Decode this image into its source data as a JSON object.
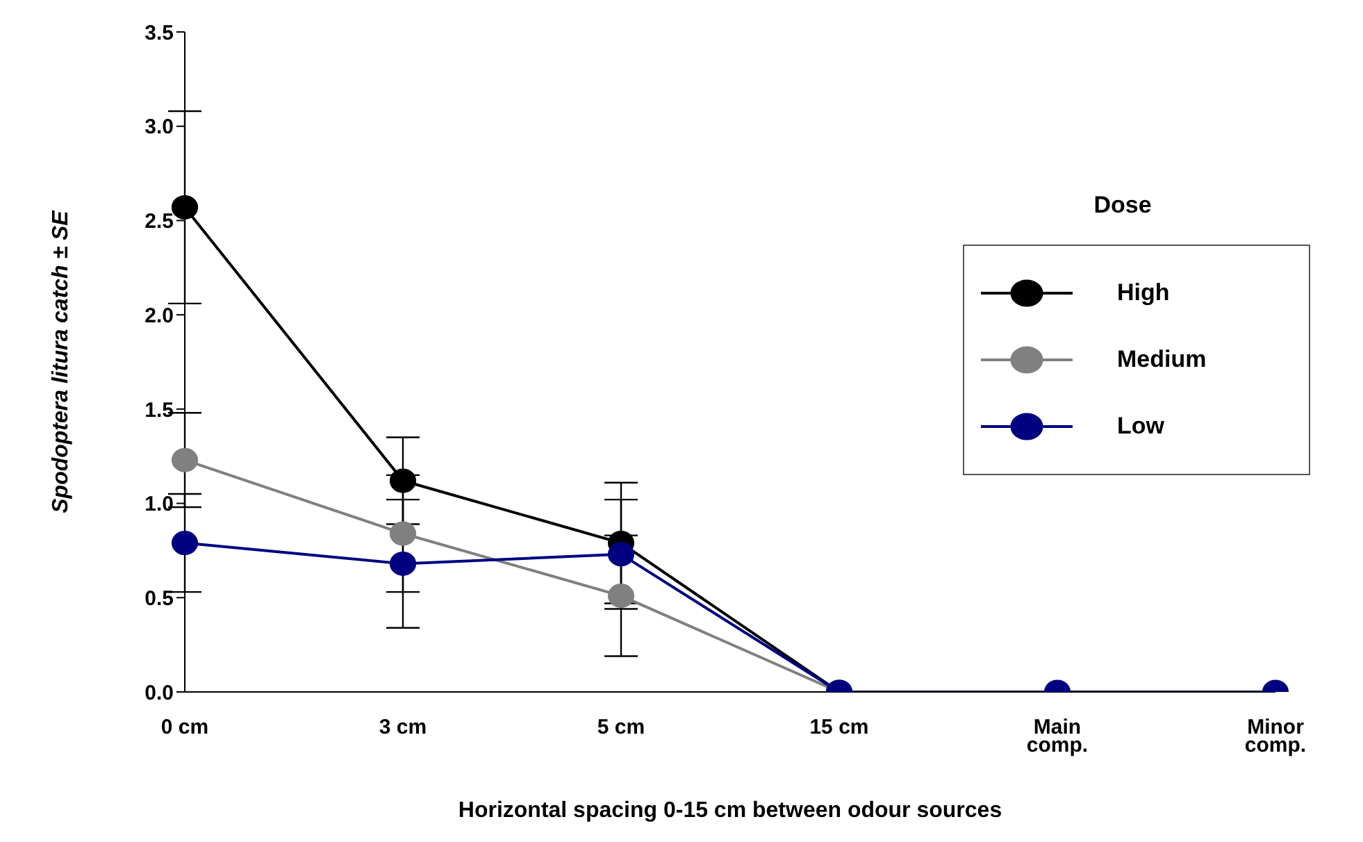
{
  "chart_data": {
    "type": "line",
    "xlabel": "Horizontal  spacing 0-15 cm between odour sources",
    "ylabel": "Spodoptera litura catch ± SE",
    "legend_title": "Dose",
    "legend": "right",
    "marker": "circle",
    "grid": false,
    "categories": [
      "0 cm",
      "3 cm",
      "5 cm",
      "15 cm",
      "Main comp.",
      "Minor comp."
    ],
    "ylim": [
      0,
      3.5
    ],
    "yticks": [
      {
        "value": 0,
        "label": "0.0"
      },
      {
        "value": 0.5,
        "label": "0.5"
      },
      {
        "value": 1,
        "label": "1.0"
      },
      {
        "value": 1.5,
        "label": "1.5"
      },
      {
        "value": 2,
        "label": "2.0"
      },
      {
        "value": 2.5,
        "label": "2.5"
      },
      {
        "value": 3,
        "label": "3.0"
      },
      {
        "value": 3.5,
        "label": "3.5"
      }
    ],
    "series": [
      {
        "name": "High",
        "color": "#000000",
        "values": [
          2.57,
          1.12,
          0.79,
          0,
          null,
          null
        ],
        "errors": [
          0.51,
          0.23,
          0.32,
          null,
          null,
          null
        ]
      },
      {
        "name": "Medium",
        "color": "#808080",
        "values": [
          1.23,
          0.84,
          0.51,
          0,
          null,
          null
        ],
        "errors": [
          0.25,
          0.31,
          0.32,
          null,
          null,
          null
        ]
      },
      {
        "name": "Low",
        "color": "#000080",
        "values": [
          0.79,
          0.68,
          0.73,
          0,
          0,
          0
        ],
        "errors": [
          0.26,
          0.34,
          0.29,
          null,
          null,
          null
        ]
      }
    ]
  }
}
